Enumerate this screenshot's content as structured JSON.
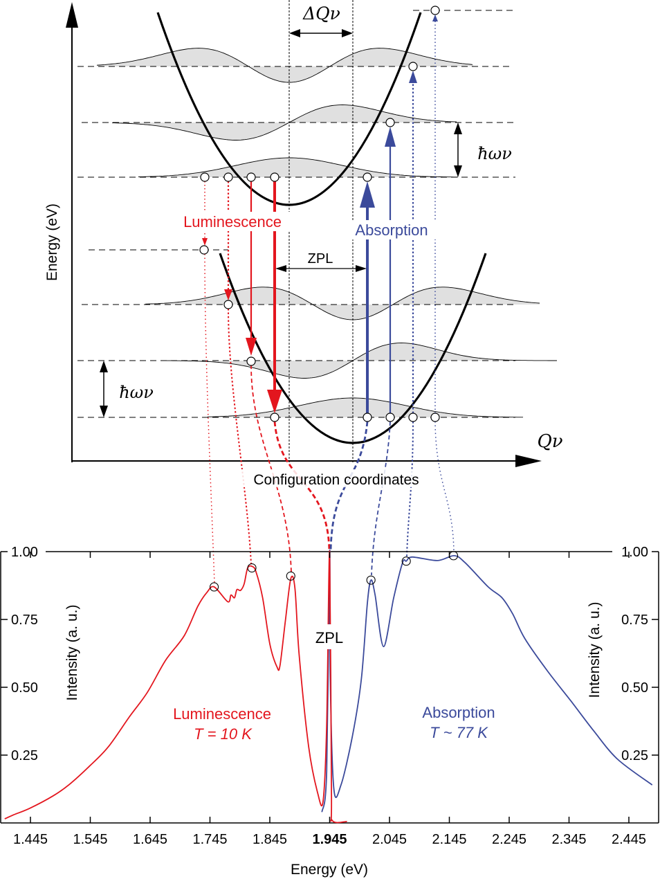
{
  "colors": {
    "luminescence": "#e3161e",
    "absorption": "#3b4a9b",
    "wavefunction_fill": "#e0e0e0",
    "axis": "#000000"
  },
  "diagram": {
    "y_axis_label": "Energy (eV)",
    "x_axis_symbol": "Qν",
    "x_axis_label": "Configuration coordinates",
    "delta_q_label": "ΔQν",
    "phonon_energy_label_upper": "ħων",
    "phonon_energy_label_lower": "ħων",
    "luminescence_label": "Luminescence",
    "absorption_label": "Absorption",
    "zpl_label": "ZPL"
  },
  "chart_data": {
    "type": "line",
    "xlabel": "Energy (eV)",
    "ylabel": "Intensity (a. u.)",
    "ylabel_right": "Intensity (a. u.)",
    "xlim": [
      1.403,
      2.495
    ],
    "ylim": [
      0,
      1.0
    ],
    "x_ticks": [
      "1.445",
      "1.545",
      "1.645",
      "1.745",
      "1.845",
      "1.945",
      "2.045",
      "2.145",
      "2.245",
      "2.345",
      "2.445"
    ],
    "x_tick_bold": "1.945",
    "y_ticks": [
      "1.00",
      "0.75",
      "0.50",
      "0.25"
    ],
    "grid": false,
    "zpl_label": "ZPL",
    "series": [
      {
        "name": "Luminescence",
        "annotation": "T = 10 K",
        "color": "#e3161e",
        "x": [
          1.402,
          1.417,
          1.444,
          1.483,
          1.509,
          1.544,
          1.575,
          1.61,
          1.64,
          1.671,
          1.702,
          1.725,
          1.74,
          1.752,
          1.775,
          1.78,
          1.786,
          1.79,
          1.796,
          1.802,
          1.808,
          1.816,
          1.822,
          1.833,
          1.845,
          1.857,
          1.862,
          1.871,
          1.88,
          1.887,
          1.894,
          1.91,
          1.925,
          1.934,
          1.94,
          1.945,
          1.948,
          1.949,
          1.974
        ],
        "y": [
          0.015,
          0.03,
          0.054,
          0.1,
          0.14,
          0.21,
          0.28,
          0.39,
          0.48,
          0.6,
          0.69,
          0.8,
          0.85,
          0.87,
          0.815,
          0.84,
          0.83,
          0.86,
          0.857,
          0.88,
          0.94,
          0.945,
          0.925,
          0.83,
          0.66,
          0.575,
          0.58,
          0.745,
          0.9,
          0.865,
          0.62,
          0.28,
          0.11,
          0.08,
          0.36,
          1.0,
          0.11,
          0.01,
          0.005
        ],
        "marked_peaks": [
          [
            1.752,
            0.87
          ],
          [
            1.815,
            0.94
          ],
          [
            1.88,
            0.91
          ]
        ]
      },
      {
        "name": "Absorption",
        "annotation": "T ~ 77 K",
        "color": "#3b4a9b",
        "x": [
          1.932,
          1.94,
          1.945,
          1.946,
          1.952,
          1.964,
          1.983,
          1.998,
          2.008,
          2.014,
          2.021,
          2.035,
          2.052,
          2.067,
          2.073,
          2.083,
          2.125,
          2.153,
          2.171,
          2.21,
          2.233,
          2.251,
          2.271,
          2.309,
          2.348,
          2.386,
          2.426,
          2.484
        ],
        "y": [
          0.04,
          0.19,
          1.0,
          0.53,
          0.125,
          0.14,
          0.32,
          0.53,
          0.81,
          0.895,
          0.84,
          0.65,
          0.83,
          0.96,
          0.965,
          0.98,
          0.967,
          0.985,
          0.96,
          0.87,
          0.83,
          0.77,
          0.68,
          0.56,
          0.45,
          0.34,
          0.235,
          0.14
        ],
        "marked_peaks": [
          [
            2.014,
            0.895
          ],
          [
            2.073,
            0.965
          ],
          [
            2.152,
            0.985
          ]
        ]
      }
    ]
  }
}
